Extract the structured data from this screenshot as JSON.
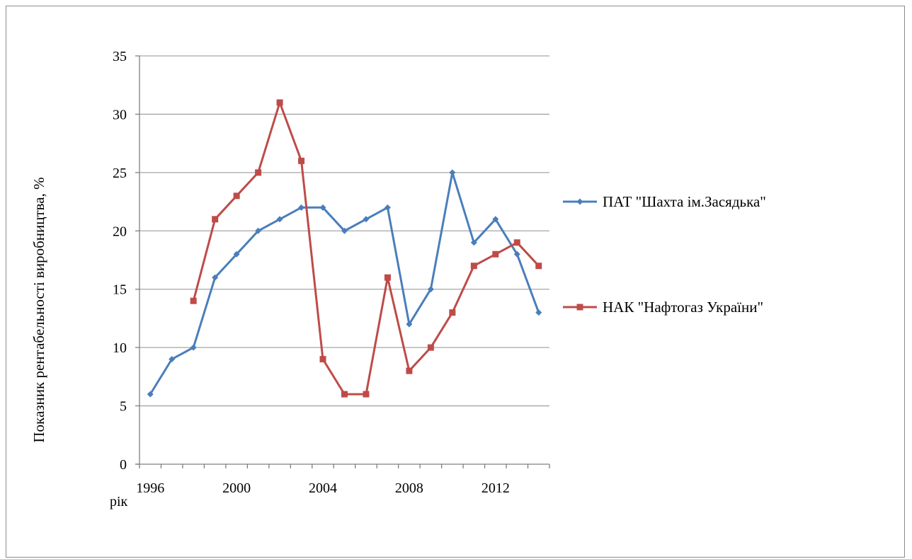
{
  "chart_data": {
    "type": "line",
    "title": "",
    "xlabel": "рік",
    "ylabel": "Показник рентабельності виробництва, %",
    "ylim": [
      0,
      35
    ],
    "y_ticks": [
      "0",
      "5",
      "10",
      "15",
      "20",
      "25",
      "30",
      "35"
    ],
    "x_range": [
      1996,
      2014
    ],
    "x_tick_labels": [
      "1996",
      "2000",
      "2004",
      "2008",
      "2012"
    ],
    "grid": true,
    "legend_position": "right",
    "series": [
      {
        "name": "ПАТ \"Шахта ім.Засядька\"",
        "color": "#4a7ebb",
        "marker": "diamond",
        "x": [
          1996,
          1997,
          1998,
          1999,
          2000,
          2001,
          2002,
          2003,
          2004,
          2005,
          2006,
          2007,
          2008,
          2009,
          2010,
          2011,
          2012,
          2013,
          2014
        ],
        "values": [
          6,
          9,
          10,
          16,
          18,
          20,
          21,
          22,
          22,
          20,
          21,
          22,
          12,
          15,
          25,
          19,
          21,
          18,
          13
        ]
      },
      {
        "name": "НАК \"Нафтогаз України\"",
        "color": "#be4b48",
        "marker": "square",
        "x": [
          1998,
          1999,
          2000,
          2001,
          2002,
          2003,
          2004,
          2005,
          2006,
          2007,
          2008,
          2009,
          2010,
          2011,
          2012,
          2013,
          2014
        ],
        "values": [
          14,
          21,
          23,
          25,
          31,
          26,
          9,
          6,
          6,
          16,
          8,
          10,
          13,
          17,
          18,
          19,
          17
        ]
      }
    ]
  }
}
